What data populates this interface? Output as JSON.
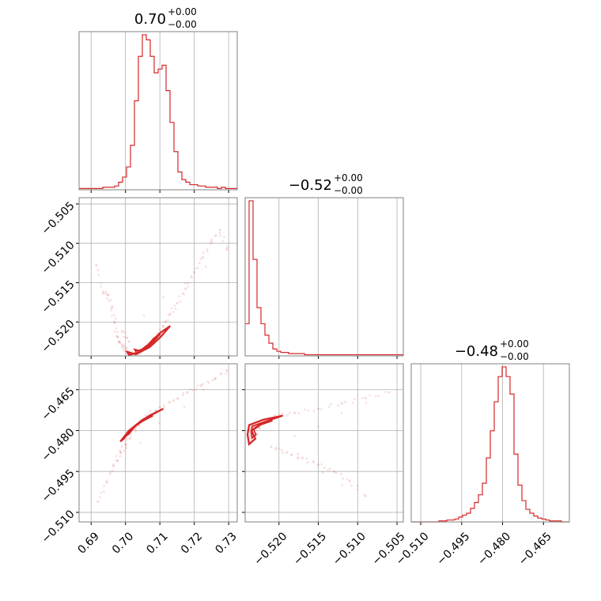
{
  "chart_data": {
    "type": "corner",
    "color": "#d62728",
    "grid": true,
    "parameters": [
      {
        "title": "0.70",
        "err_plus": "+0.00",
        "err_minus": "−0.00",
        "range": [
          0.6865,
          0.7325
        ],
        "ticks": [
          0.69,
          0.7,
          0.71,
          0.72,
          0.73
        ],
        "tick_labels": [
          "0.69",
          "0.70",
          "0.71",
          "0.72",
          "0.73"
        ]
      },
      {
        "title": "−0.52",
        "err_plus": "+0.00",
        "err_minus": "−0.00",
        "range": [
          -0.5243,
          -0.5042
        ],
        "ticks": [
          -0.505,
          -0.51,
          -0.515,
          -0.52
        ],
        "tick_labels": [
          "−0.505",
          "−0.510",
          "−0.515",
          "−0.520"
        ]
      },
      {
        "title": "−0.48",
        "err_plus": "+0.00",
        "err_minus": "−0.00",
        "range": [
          -0.5135,
          -0.4555
        ],
        "ticks": [
          -0.465,
          -0.48,
          -0.495,
          -0.51
        ],
        "tick_labels": [
          "−0.465",
          "−0.480",
          "−0.495",
          "−0.510"
        ]
      }
    ],
    "histograms": [
      {
        "param": 0,
        "bin_start": 0.6865,
        "bin_width": 0.00115,
        "counts": [
          1,
          1,
          1,
          1,
          1,
          1,
          2,
          2,
          2,
          3,
          6,
          10,
          18,
          35,
          70,
          105,
          122,
          118,
          105,
          92,
          95,
          98,
          78,
          53,
          30,
          14,
          8,
          6,
          4,
          4,
          3,
          3,
          2,
          2,
          2,
          1,
          2,
          1,
          1,
          1
        ]
      },
      {
        "param": 1,
        "bin_start": -0.5243,
        "bin_width": 0.000503,
        "counts": [
          28,
          135,
          84,
          42,
          28,
          18,
          11,
          6,
          4,
          3,
          3,
          2,
          2,
          2,
          2,
          1,
          1,
          1,
          1,
          1,
          1,
          1,
          1,
          1,
          1,
          1,
          1,
          1,
          1,
          1,
          1,
          1,
          1,
          1,
          1,
          1,
          1,
          1,
          1,
          1
        ]
      },
      {
        "param": 2,
        "bin_start": -0.5135,
        "bin_width": 0.00145,
        "counts": [
          0,
          0,
          0,
          0,
          0,
          0,
          0,
          1,
          1,
          2,
          2,
          3,
          5,
          7,
          9,
          14,
          20,
          28,
          40,
          66,
          94,
          124,
          150,
          160,
          150,
          132,
          70,
          38,
          22,
          13,
          9,
          6,
          4,
          3,
          2,
          1,
          1,
          1,
          0,
          0
        ]
      }
    ],
    "pairs": [
      {
        "x_param": 0,
        "y_param": 1,
        "scatter": [
          [
            0.6915,
            -0.5128
          ],
          [
            0.6935,
            -0.5162
          ],
          [
            0.695,
            -0.5165
          ],
          [
            0.696,
            -0.5182
          ],
          [
            0.6968,
            -0.52
          ],
          [
            0.6975,
            -0.5218
          ],
          [
            0.6983,
            -0.5226
          ],
          [
            0.6995,
            -0.5231
          ],
          [
            0.7002,
            -0.5237
          ],
          [
            0.7015,
            -0.524
          ],
          [
            0.7035,
            -0.5241
          ],
          [
            0.705,
            -0.5236
          ],
          [
            0.707,
            -0.5228
          ],
          [
            0.709,
            -0.5218
          ],
          [
            0.711,
            -0.5205
          ],
          [
            0.713,
            -0.519
          ],
          [
            0.715,
            -0.5176
          ],
          [
            0.7175,
            -0.5158
          ],
          [
            0.72,
            -0.5137
          ],
          [
            0.7225,
            -0.5118
          ],
          [
            0.725,
            -0.5098
          ],
          [
            0.7275,
            -0.5083
          ],
          [
            0.7295,
            -0.5108
          ],
          [
            0.699,
            -0.5212
          ],
          [
            0.701,
            -0.5225
          ]
        ],
        "contour": [
          [
            0.703,
            -0.5241
          ],
          [
            0.707,
            -0.5232
          ],
          [
            0.71,
            -0.522
          ],
          [
            0.713,
            -0.5205
          ],
          [
            0.71,
            -0.5214
          ],
          [
            0.707,
            -0.5228
          ],
          [
            0.704,
            -0.5238
          ],
          [
            0.701,
            -0.5242
          ],
          [
            0.7005,
            -0.5238
          ],
          [
            0.703,
            -0.5241
          ]
        ]
      },
      {
        "x_param": 0,
        "y_param": 2,
        "scatter": [
          [
            0.692,
            -0.506
          ],
          [
            0.6945,
            -0.499
          ],
          [
            0.6965,
            -0.493
          ],
          [
            0.6985,
            -0.488
          ],
          [
            0.7,
            -0.485
          ],
          [
            0.703,
            -0.479
          ],
          [
            0.706,
            -0.4745
          ],
          [
            0.71,
            -0.4715
          ],
          [
            0.714,
            -0.469
          ],
          [
            0.718,
            -0.466
          ],
          [
            0.722,
            -0.4635
          ],
          [
            0.726,
            -0.461
          ],
          [
            0.7295,
            -0.458
          ],
          [
            0.6975,
            -0.491
          ],
          [
            0.704,
            -0.478
          ]
        ],
        "contour": [
          [
            0.6985,
            -0.484
          ],
          [
            0.701,
            -0.48
          ],
          [
            0.704,
            -0.477
          ],
          [
            0.707,
            -0.4745
          ],
          [
            0.711,
            -0.472
          ],
          [
            0.708,
            -0.474
          ],
          [
            0.705,
            -0.476
          ],
          [
            0.702,
            -0.479
          ],
          [
            0.6995,
            -0.483
          ],
          [
            0.6985,
            -0.484
          ]
        ]
      },
      {
        "x_param": 1,
        "y_param": 2,
        "scatter": [
          [
            -0.5205,
            -0.4745
          ],
          [
            -0.518,
            -0.4735
          ],
          [
            -0.515,
            -0.472
          ],
          [
            -0.512,
            -0.47
          ],
          [
            -0.509,
            -0.468
          ],
          [
            -0.506,
            -0.466
          ],
          [
            -0.521,
            -0.486
          ],
          [
            -0.519,
            -0.488
          ],
          [
            -0.517,
            -0.49
          ],
          [
            -0.515,
            -0.4925
          ],
          [
            -0.513,
            -0.495
          ],
          [
            -0.511,
            -0.4985
          ],
          [
            -0.509,
            -0.504
          ],
          [
            -0.523,
            -0.482
          ],
          [
            -0.5225,
            -0.479
          ]
        ],
        "contour": [
          [
            -0.5238,
            -0.478
          ],
          [
            -0.522,
            -0.476
          ],
          [
            -0.5195,
            -0.4745
          ],
          [
            -0.522,
            -0.477
          ],
          [
            -0.5235,
            -0.48
          ],
          [
            -0.523,
            -0.483
          ],
          [
            -0.5238,
            -0.485
          ],
          [
            -0.524,
            -0.4815
          ],
          [
            -0.5238,
            -0.478
          ]
        ]
      }
    ]
  }
}
